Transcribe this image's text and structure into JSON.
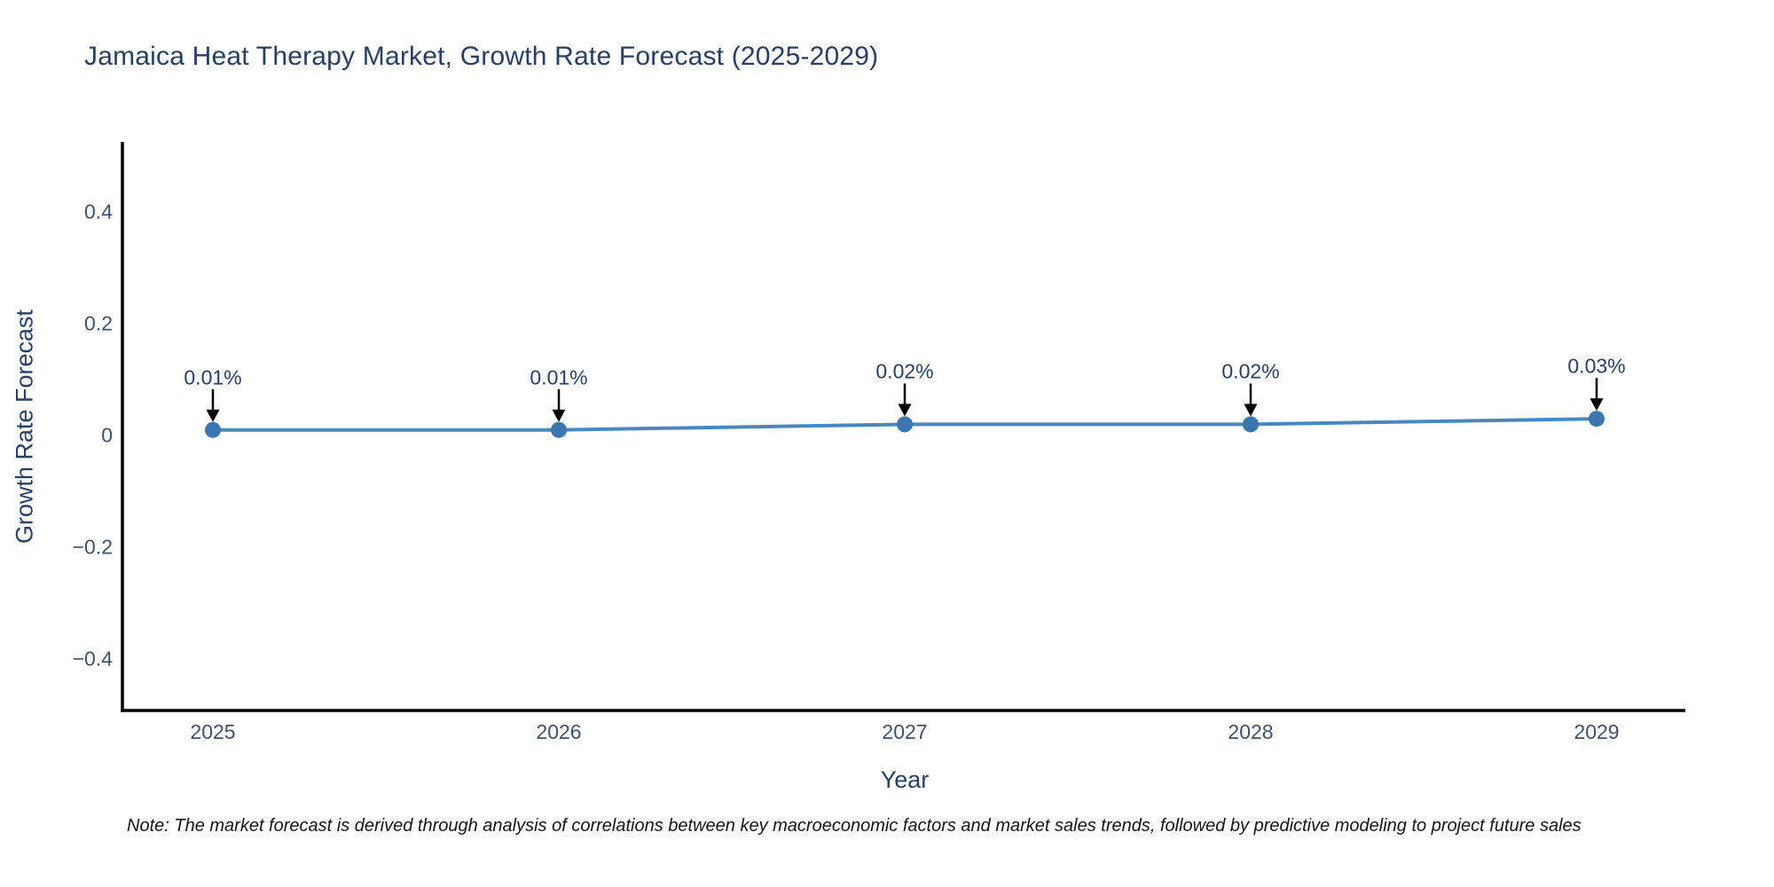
{
  "note": "Note: The market forecast is derived through analysis of correlations between key macroeconomic factors and market sales trends, followed by predictive modeling to project future sales",
  "chart_data": {
    "type": "line",
    "title": "Jamaica Heat Therapy Market, Growth Rate Forecast (2025-2029)",
    "xlabel": "Year",
    "ylabel": "Growth Rate Forecast",
    "x": [
      2025,
      2026,
      2027,
      2028,
      2029
    ],
    "y": [
      0.01,
      0.01,
      0.02,
      0.02,
      0.03
    ],
    "point_labels": [
      "0.01%",
      "0.01%",
      "0.02%",
      "0.02%",
      "0.03%"
    ],
    "xticks": [
      "2025",
      "2026",
      "2027",
      "2028",
      "2029"
    ],
    "yticks": [
      0.4,
      0.2,
      0,
      -0.2,
      -0.4
    ],
    "ytick_labels": [
      "0.4",
      "0.2",
      "0",
      "−0.2",
      "−0.4"
    ],
    "xlim": [
      2024.74,
      2029.26
    ],
    "ylim": [
      -0.49,
      0.52
    ],
    "grid": false,
    "legend": "none",
    "colors": {
      "line": "#4a87be",
      "marker": "#3b76ae",
      "axis": "#000000",
      "arrow": "#000000",
      "title_text": "#2a3f5f",
      "tick_text": "#42506b"
    }
  }
}
